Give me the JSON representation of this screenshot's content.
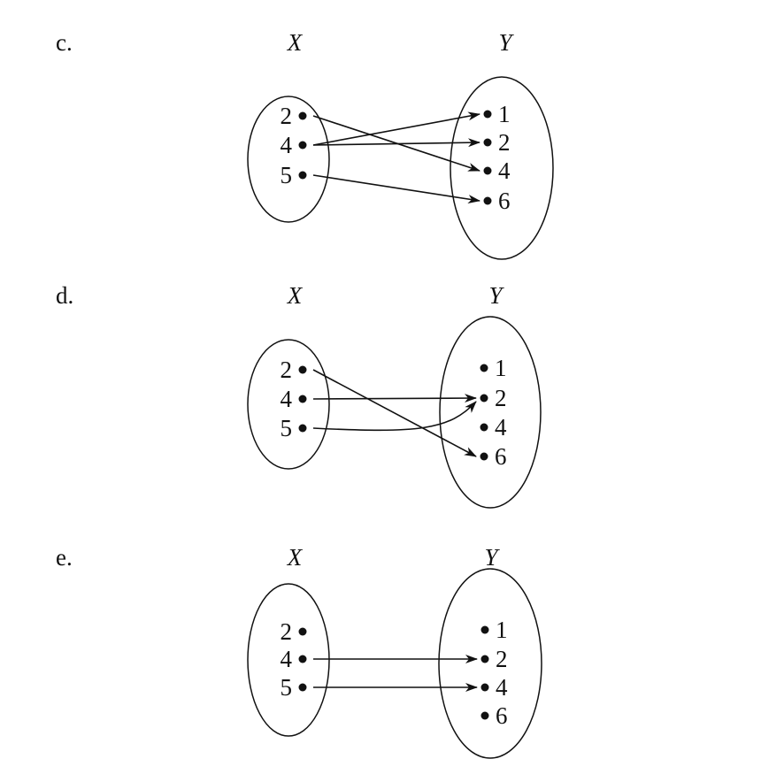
{
  "diagrams": [
    {
      "part_label": "c.",
      "domain_label": "X",
      "codomain_label": "Y",
      "domain": [
        "2",
        "4",
        "5"
      ],
      "codomain": [
        "1",
        "2",
        "4",
        "6"
      ],
      "mappings": [
        {
          "from": "2",
          "to": "4"
        },
        {
          "from": "4",
          "to": "1"
        },
        {
          "from": "4",
          "to": "2"
        },
        {
          "from": "5",
          "to": "6"
        }
      ]
    },
    {
      "part_label": "d.",
      "domain_label": "X",
      "codomain_label": "Y",
      "domain": [
        "2",
        "4",
        "5"
      ],
      "codomain": [
        "1",
        "2",
        "4",
        "6"
      ],
      "mappings": [
        {
          "from": "2",
          "to": "6"
        },
        {
          "from": "4",
          "to": "2"
        },
        {
          "from": "5",
          "to": "2"
        }
      ]
    },
    {
      "part_label": "e.",
      "domain_label": "X",
      "codomain_label": "Y",
      "domain": [
        "2",
        "4",
        "5"
      ],
      "codomain": [
        "1",
        "2",
        "4",
        "6"
      ],
      "mappings": [
        {
          "from": "4",
          "to": "2"
        },
        {
          "from": "5",
          "to": "4"
        }
      ]
    }
  ]
}
